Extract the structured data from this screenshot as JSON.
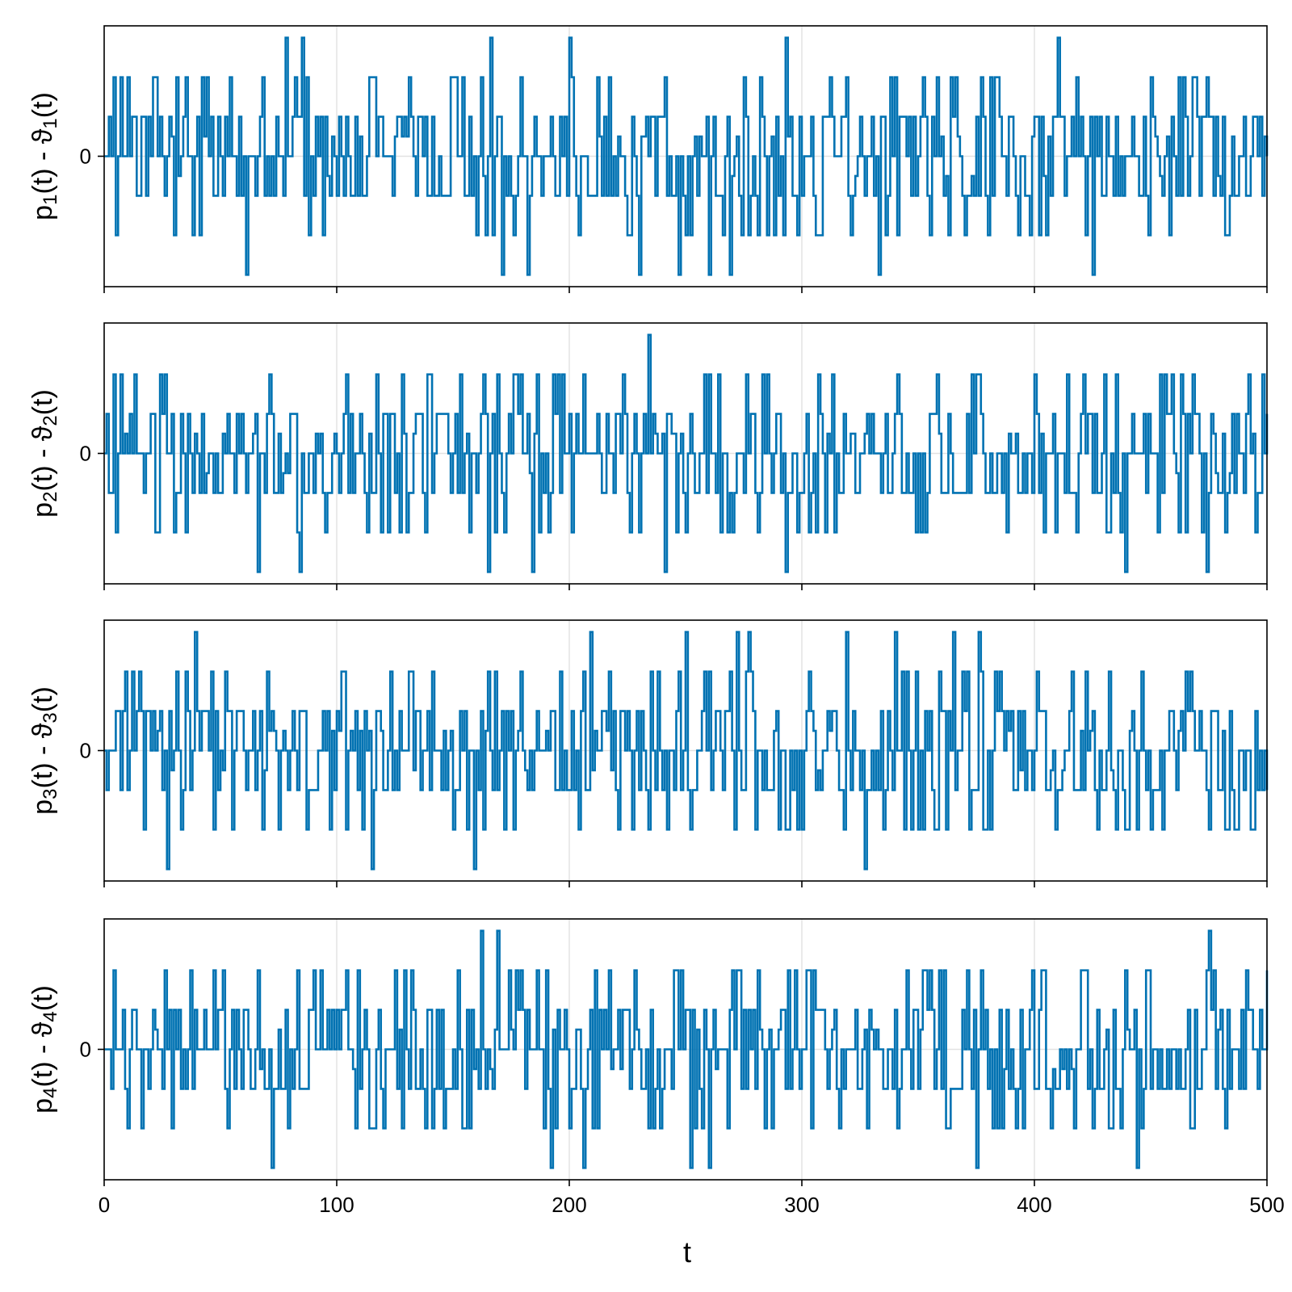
{
  "chart_data": {
    "type": "line",
    "xlabel": "t",
    "xlim": [
      0,
      500
    ],
    "x_ticks": [
      0,
      100,
      200,
      300,
      400,
      500
    ],
    "x_tick_labels": [
      "0",
      "100",
      "200",
      "300",
      "400",
      "500"
    ],
    "y_ticks": [
      0
    ],
    "y_tick_labels": [
      "0"
    ],
    "grid": true,
    "color": "#0072B2",
    "description_of_values": "step-like signal oscillating about 0, taking discrete levels -3..3 (units unlabeled), sampled at t = 0..500",
    "panels": [
      {
        "ylabel_prefix": "p",
        "ylabel_mid": "(t) - ϑ",
        "ylabel_suffix": "(t)",
        "subscript": "1",
        "ylim": [
          -3.3,
          3.3
        ],
        "seed": 11
      },
      {
        "ylabel_prefix": "p",
        "ylabel_mid": "(t) - ϑ",
        "ylabel_suffix": "(t)",
        "subscript": "2",
        "ylim": [
          -3.3,
          3.3
        ],
        "seed": 23
      },
      {
        "ylabel_prefix": "p",
        "ylabel_mid": "(t) - ϑ",
        "ylabel_suffix": "(t)",
        "subscript": "3",
        "ylim": [
          -3.3,
          3.3
        ],
        "seed": 37
      },
      {
        "ylabel_prefix": "p",
        "ylabel_mid": "(t) - ϑ",
        "ylabel_suffix": "(t)",
        "subscript": "4",
        "ylim": [
          -3.3,
          3.3
        ],
        "seed": 53
      }
    ]
  }
}
